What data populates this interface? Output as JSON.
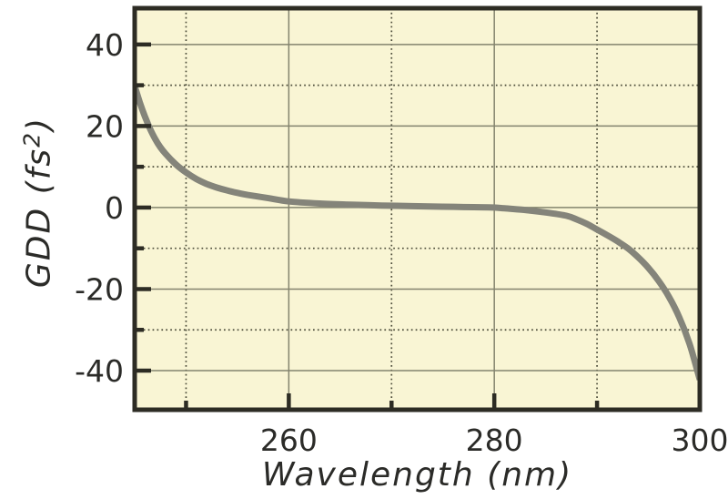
{
  "figure": {
    "background": "#ffffff"
  },
  "chart_data": {
    "type": "line",
    "xlabel": "Wavelength (nm)",
    "ylabel": "GDD (fs²)",
    "ylabel_parts": [
      "GDD (fs",
      "2",
      ")"
    ],
    "xlim": [
      245,
      300
    ],
    "ylim": [
      -49.6,
      48.9
    ],
    "x_major_ticks": [
      {
        "value": 260,
        "label": "260"
      },
      {
        "value": 280,
        "label": "280"
      },
      {
        "value": 300,
        "label": "300"
      }
    ],
    "x_minor_ticks": [
      250,
      270,
      290
    ],
    "y_major_ticks": [
      {
        "value": -40,
        "label": "-40"
      },
      {
        "value": -20,
        "label": "-20"
      },
      {
        "value": 0,
        "label": "0"
      },
      {
        "value": 20,
        "label": "20"
      },
      {
        "value": 40,
        "label": "40"
      }
    ],
    "y_minor_ticks": [
      -30,
      -10,
      10,
      30
    ],
    "grid": {
      "major_style": "solid",
      "minor_style": "dotted"
    },
    "series": [
      {
        "name": "GDD",
        "color": "#84847a",
        "line_width": 7,
        "x": [
          245,
          245.5,
          246,
          246.5,
          247,
          247.5,
          248,
          249,
          250,
          251,
          252,
          253,
          254,
          255,
          256,
          258,
          260,
          263,
          266,
          269,
          272,
          275,
          278,
          280,
          281,
          283,
          285,
          287,
          288,
          289,
          290,
          291,
          292,
          293,
          294,
          295,
          296,
          297,
          298,
          299,
          300
        ],
        "y": [
          29.8,
          25.8,
          22.3,
          19.3,
          16.8,
          14.8,
          13.2,
          10.6,
          8.6,
          7.0,
          5.8,
          4.9,
          4.2,
          3.6,
          3.1,
          2.3,
          1.5,
          1.0,
          0.7,
          0.5,
          0.35,
          0.2,
          0.1,
          0.0,
          -0.2,
          -0.6,
          -1.2,
          -2.0,
          -2.9,
          -4.0,
          -5.4,
          -6.8,
          -8.3,
          -10.0,
          -12.2,
          -14.8,
          -18.0,
          -21.9,
          -26.9,
          -33.4,
          -42.2
        ]
      }
    ],
    "colors": {
      "plot_background": "#f9f5d4",
      "border": "#2d2c24",
      "major_grid": "#83836e",
      "minor_grid": "#4c4c3a",
      "text": "#2b2b28"
    }
  }
}
